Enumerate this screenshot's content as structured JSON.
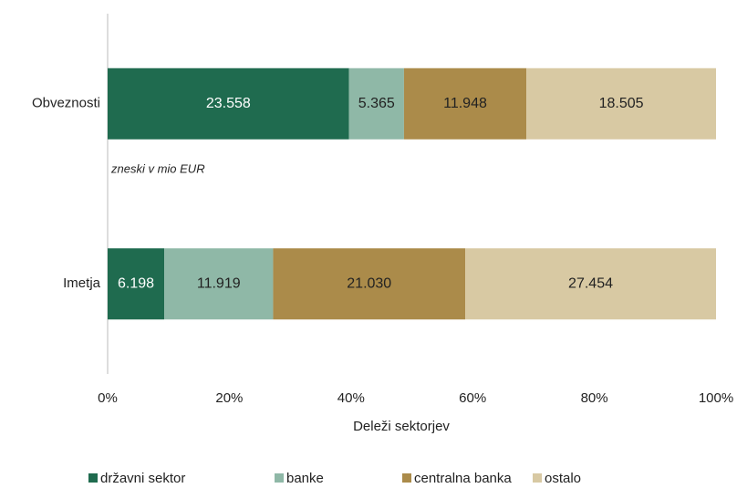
{
  "chart_data": {
    "type": "bar",
    "orientation": "horizontal",
    "stack": "percent",
    "note": "zneski v mio EUR",
    "x_label": "Deleži sektorjev",
    "categories": [
      "Obveznosti",
      "Imetja"
    ],
    "series": [
      {
        "name": "državni sektor",
        "color": "#1f6b4f",
        "values": [
          23558,
          6198
        ],
        "value_labels": [
          "23.558",
          "6.198"
        ]
      },
      {
        "name": "banke",
        "color": "#8fb8a7",
        "values": [
          5365,
          11919
        ],
        "value_labels": [
          "5.365",
          "11.919"
        ]
      },
      {
        "name": "centralna banka",
        "color": "#ab8b4a",
        "values": [
          11948,
          21030
        ],
        "value_labels": [
          "11.948",
          "21.030"
        ]
      },
      {
        "name": "ostalo",
        "color": "#d8c9a3",
        "values": [
          18505,
          27454
        ],
        "value_labels": [
          "18.505",
          "27.454"
        ]
      }
    ],
    "xlim": [
      0,
      100
    ],
    "xticks": [
      {
        "value": 0,
        "label": "0%"
      },
      {
        "value": 20,
        "label": "20%"
      },
      {
        "value": 40,
        "label": "40%"
      },
      {
        "value": 60,
        "label": "60%"
      },
      {
        "value": 80,
        "label": "80%"
      },
      {
        "value": 100,
        "label": "100%"
      }
    ],
    "grid": false,
    "legend": "bottom"
  }
}
